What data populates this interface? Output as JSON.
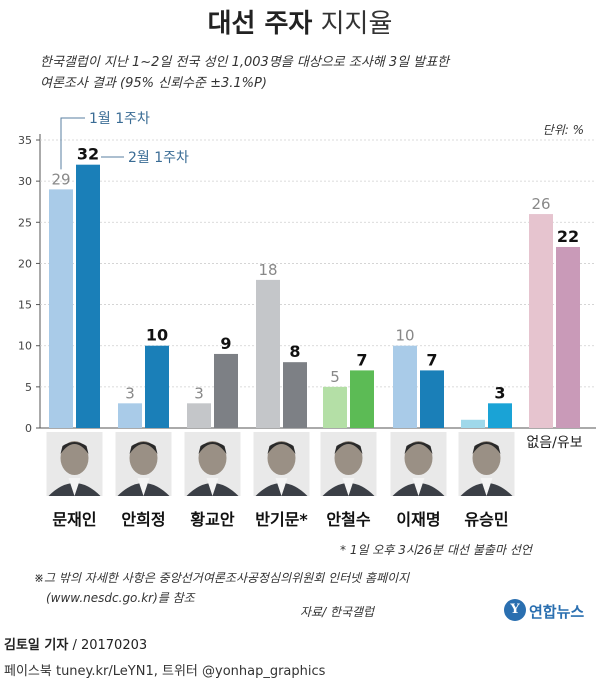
{
  "header": {
    "title_bold": "대선 주자",
    "title_light": "지지율"
  },
  "subtitle": {
    "line1": "한국갤럽이 지난 1~2일 전국 성인 1,003명을 대상으로 조사해 3일 발표한",
    "line2": "여론조사 결과 (95% 신뢰수준 ±3.1%P)"
  },
  "chart_data": {
    "type": "bar",
    "categories": [
      "문재인",
      "안희정",
      "황교안",
      "반기문*",
      "안철수",
      "이재명",
      "유승민",
      "없음/유보"
    ],
    "series": [
      {
        "name": "1월 1주차",
        "values": [
          29,
          3,
          3,
          18,
          5,
          10,
          1,
          26
        ]
      },
      {
        "name": "2월 1주차",
        "values": [
          32,
          10,
          9,
          8,
          7,
          7,
          3,
          22
        ]
      }
    ],
    "data_labels": {
      "1월 1주차": [
        "29",
        "3",
        "3",
        "18",
        "5",
        "10",
        "",
        "26"
      ],
      "2월 1주차": [
        "32",
        "10",
        "9",
        "8",
        "7",
        "7",
        "3",
        "22"
      ]
    },
    "yticks": [
      "0",
      "5",
      "10",
      "15",
      "20",
      "25",
      "30",
      "35"
    ],
    "ylim": [
      0,
      35
    ],
    "unit_label": "단위: %",
    "legend": [
      "1월 1주차",
      "2월 1주차"
    ],
    "colors": {
      "문재인": [
        "#a9cbe8",
        "#1a7fb8"
      ],
      "안희정": [
        "#a9cbe8",
        "#1a7fb8"
      ],
      "황교안": [
        "#c4c6c9",
        "#7d8085"
      ],
      "반기문*": [
        "#c4c6c9",
        "#7d8085"
      ],
      "안철수": [
        "#b4dfa6",
        "#5cbb55"
      ],
      "이재명": [
        "#a9cbe8",
        "#1a7fb8"
      ],
      "유승민": [
        "#9fd8ea",
        "#1aa3d6"
      ],
      "없음/유보": [
        "#e6c4cf",
        "#c99ab8"
      ]
    }
  },
  "candidate_colors_note_free": true,
  "notes": {
    "withdrawal": "* 1일 오후 3시26분 대선 불출마 선언",
    "details_line1": "※그 밖의 자세한 사항은 중앙선거여론조사공정심의위원회 인터넷 홈페이지",
    "details_line2": "(www.nesdc.go.kr)를 참조",
    "source": "자료/ 한국갤럽"
  },
  "byline": {
    "reporter": "김토일 기자",
    "date": " / 20170203"
  },
  "social": "페이스북 tuney.kr/LeYN1, 트위터 @yonhap_graphics",
  "logo": {
    "mark": "Y",
    "name": "연합뉴스"
  }
}
